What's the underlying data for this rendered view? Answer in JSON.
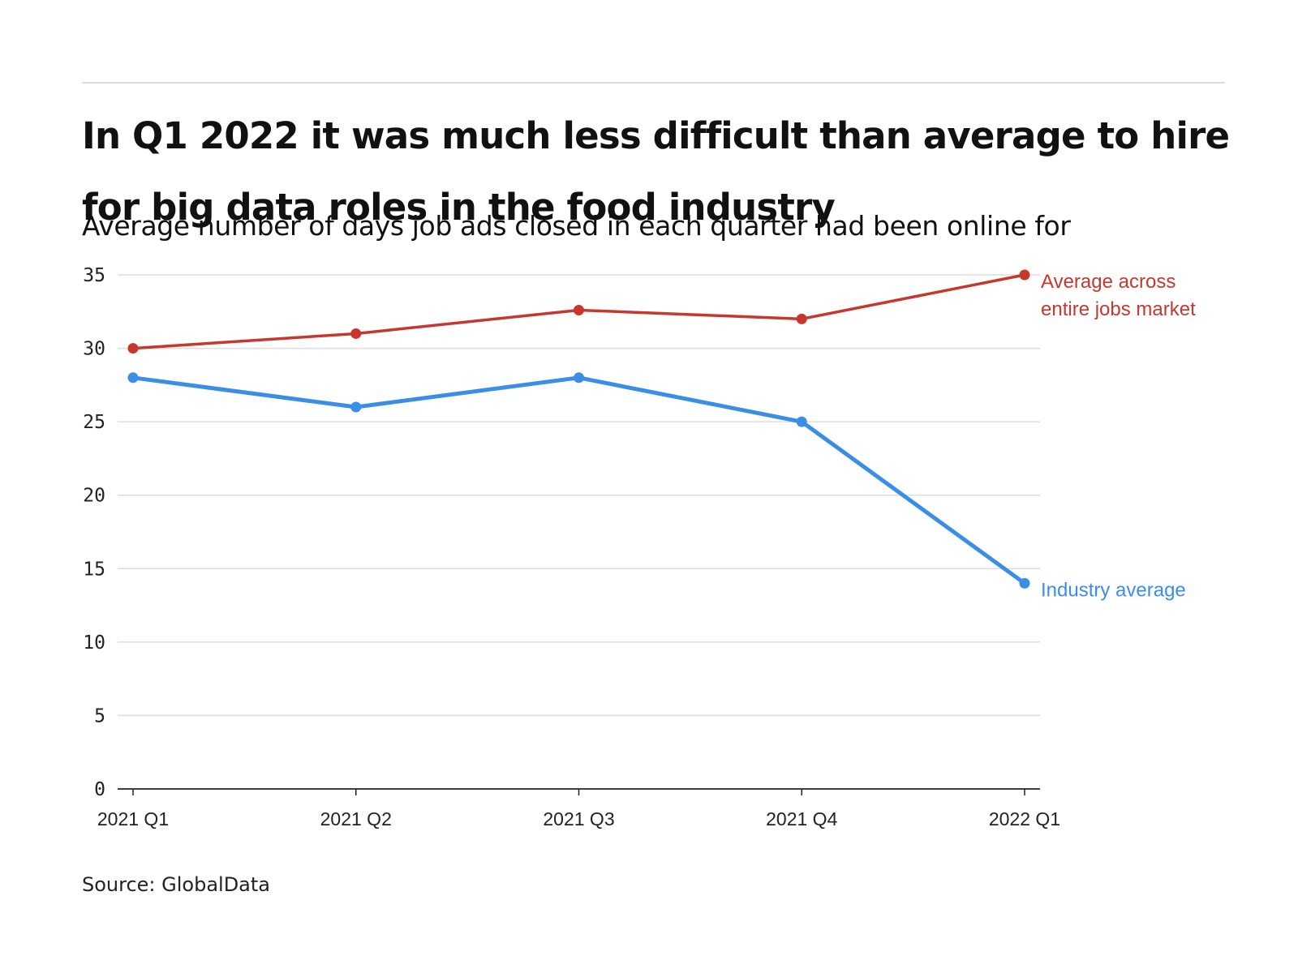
{
  "header": {
    "title": "In Q1 2022 it was much less difficult than average to hire for big data roles in the food industry",
    "subtitle": "Average number of days job ads closed in each quarter had been online for"
  },
  "footer": {
    "source": "Source: GlobalData"
  },
  "chart_data": {
    "type": "line",
    "title": "In Q1 2022 it was much less difficult than average to hire for big data roles in the food industry",
    "subtitle": "Average number of days job ads closed in each quarter had been online for",
    "xlabel": "",
    "ylabel": "",
    "categories": [
      "2021 Q1",
      "2021 Q2",
      "2021 Q3",
      "2021 Q4",
      "2022 Q1"
    ],
    "ylim": [
      0,
      35
    ],
    "yticks": [
      0,
      5,
      10,
      15,
      20,
      25,
      30,
      35
    ],
    "grid": true,
    "legend": "direct labels at line ends",
    "series": [
      {
        "name": "Average across entire jobs market",
        "label_lines": [
          "Average across",
          "entire jobs market"
        ],
        "color": "#c8372d",
        "values": [
          30,
          31,
          32.6,
          32,
          35
        ]
      },
      {
        "name": "Industry average",
        "label_lines": [
          "Industry average"
        ],
        "color": "#3a8ee6",
        "values": [
          28,
          26,
          28,
          25,
          14
        ]
      }
    ]
  }
}
